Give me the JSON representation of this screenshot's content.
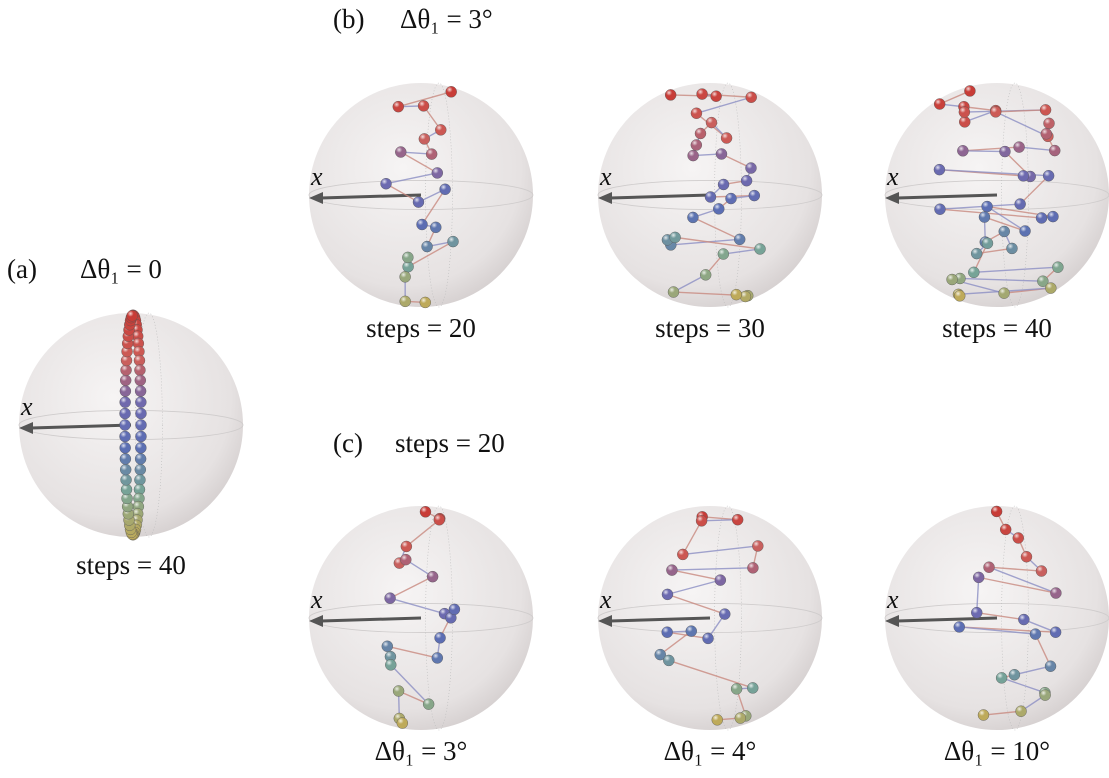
{
  "panels": [
    {
      "label": "(a)",
      "heading": "Δθ₁ = 0",
      "spheres": [
        {
          "axis_label": "x",
          "caption": "steps = 40"
        }
      ]
    },
    {
      "label": "(b)",
      "heading": "Δθ₁ = 3°",
      "spheres": [
        {
          "axis_label": "x",
          "caption": "steps = 20"
        },
        {
          "axis_label": "x",
          "caption": "steps = 30"
        },
        {
          "axis_label": "x",
          "caption": "steps = 40"
        }
      ]
    },
    {
      "label": "(c)",
      "heading": "steps = 20",
      "spheres": [
        {
          "axis_label": "x",
          "caption": "Δθ₁ = 3°"
        },
        {
          "axis_label": "x",
          "caption": "Δθ₁ = 4°"
        },
        {
          "axis_label": "x",
          "caption": "Δθ₁ = 10°"
        }
      ]
    }
  ]
}
